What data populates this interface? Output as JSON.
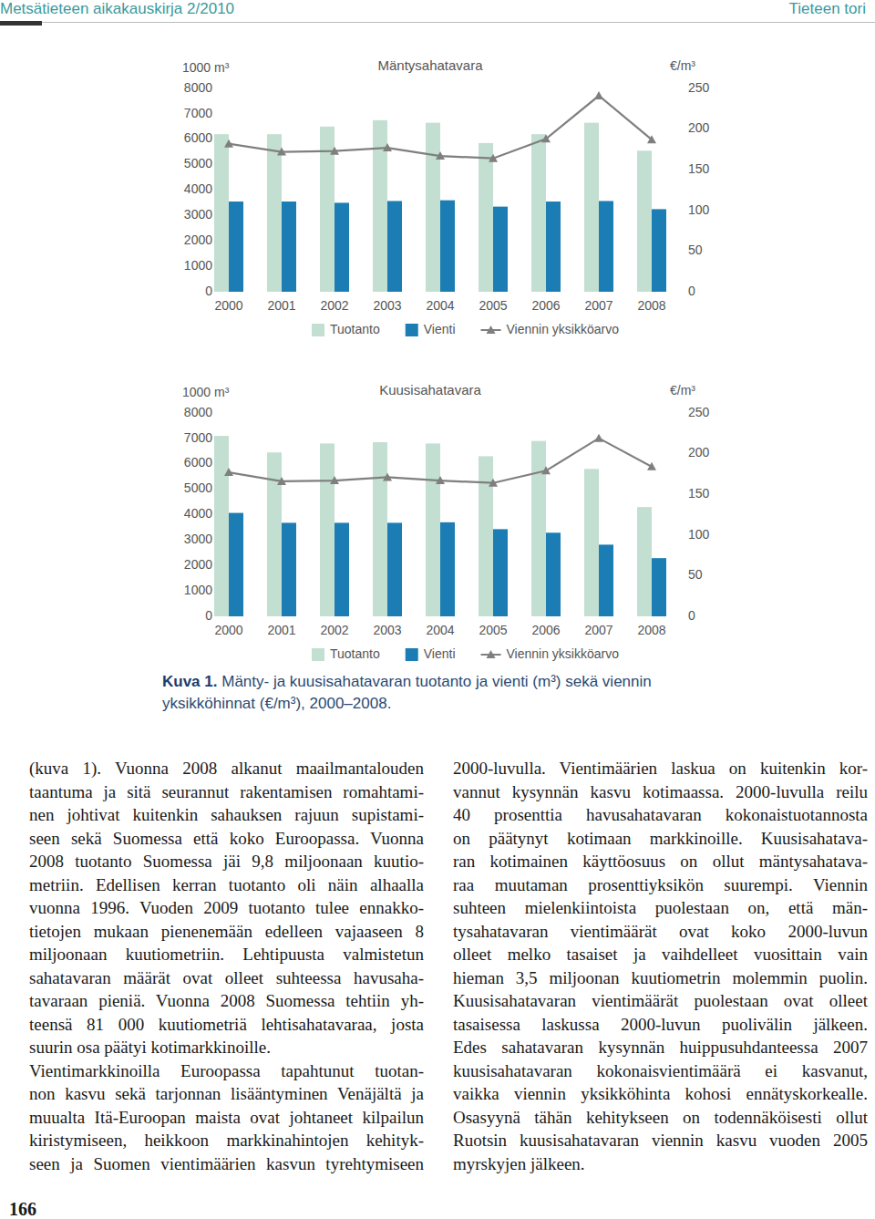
{
  "header": {
    "journal": "Metsätieteen aikakauskirja 2/2010",
    "section": "Tieteen tori"
  },
  "chart_data": [
    {
      "type": "bar",
      "title": "Mäntysahatavara",
      "ylabel": "1000 m³",
      "y2label": "€/m³",
      "categories": [
        "2000",
        "2001",
        "2002",
        "2003",
        "2004",
        "2005",
        "2006",
        "2007",
        "2008"
      ],
      "series": [
        {
          "name": "Tuotanto",
          "color": "#c3dfd1",
          "values": [
            6200,
            6200,
            6500,
            6750,
            6650,
            5850,
            6200,
            6650,
            5550
          ]
        },
        {
          "name": "Vienti",
          "color": "#1b7db3",
          "values": [
            3550,
            3550,
            3500,
            3570,
            3600,
            3350,
            3550,
            3570,
            3250
          ]
        },
        {
          "name": "Viennin yksikköarvo",
          "type": "line",
          "axis": "y2",
          "color": "#7f7f7f",
          "marker": "triangle",
          "values": [
            182,
            172,
            173,
            177,
            167,
            164,
            188,
            241,
            187
          ]
        }
      ],
      "ylim": [
        0,
        8000
      ],
      "yticks": [
        0,
        1000,
        2000,
        3000,
        4000,
        5000,
        6000,
        7000,
        8000
      ],
      "y2lim": [
        0,
        250
      ],
      "y2ticks": [
        0,
        50,
        100,
        150,
        200,
        250
      ],
      "grid": false,
      "legend": "bottom"
    },
    {
      "type": "bar",
      "title": "Kuusisahatavara",
      "ylabel": "1000 m³",
      "y2label": "€/m³",
      "categories": [
        "2000",
        "2001",
        "2002",
        "2003",
        "2004",
        "2005",
        "2006",
        "2007",
        "2008"
      ],
      "series": [
        {
          "name": "Tuotanto",
          "color": "#c3dfd1",
          "values": [
            7100,
            6450,
            6800,
            6850,
            6800,
            6300,
            6900,
            5800,
            4300
          ]
        },
        {
          "name": "Vienti",
          "color": "#1b7db3",
          "values": [
            4070,
            3680,
            3680,
            3680,
            3700,
            3430,
            3290,
            2820,
            2290
          ]
        },
        {
          "name": "Viennin yksikköarvo",
          "type": "line",
          "axis": "y2",
          "color": "#7f7f7f",
          "marker": "triangle",
          "values": [
            177,
            166,
            167,
            171,
            167,
            164,
            179,
            219,
            184
          ]
        }
      ],
      "ylim": [
        0,
        8000
      ],
      "yticks": [
        0,
        1000,
        2000,
        3000,
        4000,
        5000,
        6000,
        7000,
        8000
      ],
      "y2lim": [
        0,
        250
      ],
      "y2ticks": [
        0,
        50,
        100,
        150,
        200,
        250
      ],
      "grid": false,
      "legend": "bottom"
    }
  ],
  "caption": {
    "label": "Kuva 1.",
    "lines": [
      "Mänty- ja kuusisahatavaran tuotanto ja vienti (m³) sekä viennin",
      "yksikköhinnat (€/m³), 2000–2008."
    ]
  },
  "body": {
    "columns": [
      {
        "paragraphs": [
          [
            "(kuva 1). Vuonna 2008 alkanut maailmantalouden",
            "taantuma ja sitä seurannut rakentamisen romahtami-",
            "nen johtivat kuitenkin sahauksen rajuun supistami-",
            "seen sekä Suomessa että koko Euroopassa. Vuonna",
            "2008 tuotanto Suomessa jäi 9,8 miljoonaan kuutio-",
            "metriin. Edellisen kerran tuotanto oli näin alhaalla",
            "vuonna 1996. Vuoden 2009 tuotanto tulee ennakko-",
            "tietojen mukaan pienenemään edelleen vajaaseen 8",
            "miljoonaan kuutiometriin. Lehtipuusta valmistetun",
            "sahatavaran määrät ovat olleet suhteessa havusaha-",
            "tavaraan pieniä. Vuonna 2008 Suomessa tehtiin yh-",
            "teensä 81 000 kuutiometriä lehtisahatavaraa, josta",
            "suurin osa päätyi kotimarkkinoille."
          ],
          [
            "Vientimarkkinoilla Euroopassa tapahtunut tuotan-",
            "non kasvu sekä tarjonnan lisääntyminen Venäjältä ja",
            "muualta Itä-Euroopan maista ovat johtaneet kilpailun",
            "kiristymiseen, heikkoon markkinahintojen kehityk-",
            "seen ja Suomen vientimäärien kasvun tyrehtymiseen"
          ]
        ]
      },
      {
        "paragraphs": [
          [
            "2000-luvulla. Vientimäärien laskua on kuitenkin kor-",
            "vannut kysynnän kasvu kotimaassa. 2000-luvulla reilu",
            "40 prosenttia havusahatavaran kokonaistuotannosta",
            "on päätynyt kotimaan markkinoille. Kuusisahatava-",
            "ran kotimainen käyttöosuus on ollut mäntysahatava-",
            "raa muutaman prosenttiyksikön suurempi. Viennin",
            "suhteen mielenkiintoista puolestaan on, että män-",
            "tysahatavaran vientimäärät ovat koko 2000-luvun",
            "olleet melko tasaiset ja vaihdelleet vuosittain vain",
            "hieman 3,5 miljoonan kuutiometrin molemmin puolin.",
            "Kuusisahatavaran vientimäärät puolestaan ovat olleet",
            "tasaisessa laskussa 2000-luvun puolivälin jälkeen.",
            "Edes sahatavaran kysynnän huippusuhdanteessa 2007",
            "kuusisahatavaran kokonaisvientimäärä ei kasvanut,",
            "vaikka viennin yksikköhinta kohosi ennätyskorkealle.",
            "Osasyynä tähän kehitykseen on todennäköisesti ollut",
            "Ruotsin kuusisahatavaran viennin kasvu vuoden 2005",
            "myrskyjen jälkeen."
          ]
        ]
      }
    ]
  },
  "page_number": 166
}
